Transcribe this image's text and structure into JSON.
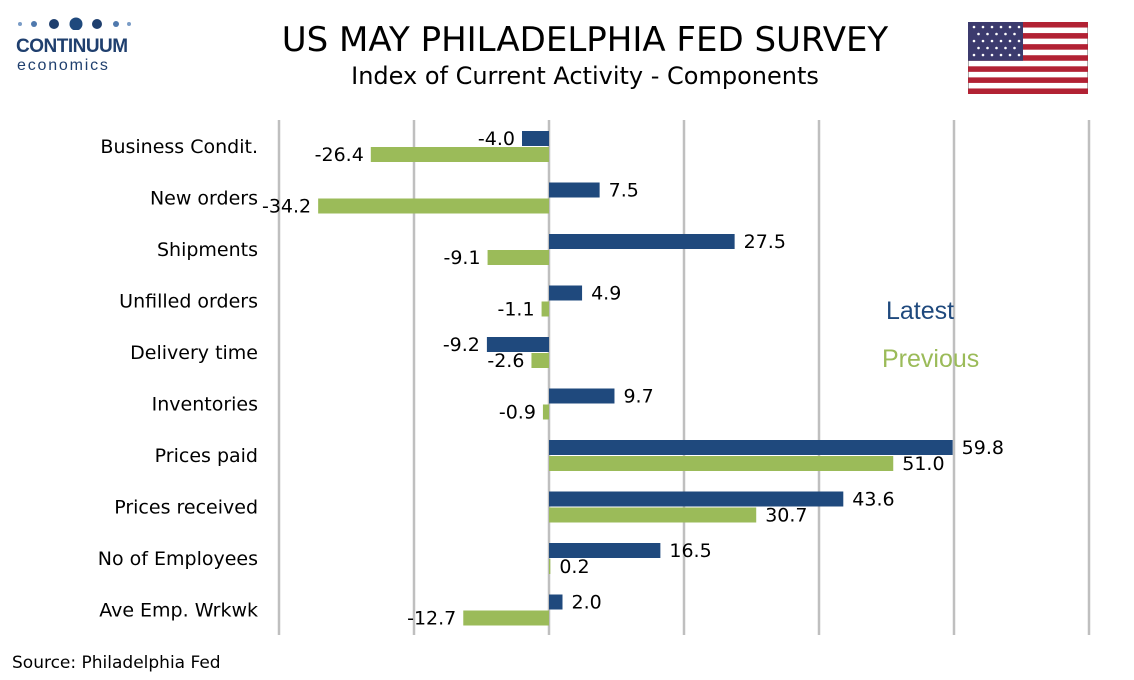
{
  "logo": {
    "line1": "CONTINUUM",
    "line2": "economics"
  },
  "flag_icon": "us-flag-icon",
  "source": "Source: Philadelphia Fed",
  "colors": {
    "latest": "#1f497d",
    "previous": "#9bbb59",
    "grid": "#bfbfbf"
  },
  "chart_data": {
    "type": "bar",
    "orientation": "horizontal",
    "title": "US MAY PHILADELPHIA FED SURVEY",
    "subtitle": "Index of Current Activity - Components",
    "categories": [
      "Business Condit.",
      "New orders",
      "Shipments",
      "Unfilled orders",
      "Delivery time",
      "Inventories",
      "Prices paid",
      "Prices received",
      "No of Employees",
      "Ave Emp. Wrkwk"
    ],
    "series": [
      {
        "name": "Latest",
        "values": [
          -4.0,
          7.5,
          27.5,
          4.9,
          -9.2,
          9.7,
          59.8,
          43.6,
          16.5,
          2.0
        ],
        "labels": [
          "-4.0",
          "7.5",
          "27.5",
          "4.9",
          "-9.2",
          "9.7",
          "59.8",
          "43.6",
          "16.5",
          "2.0"
        ]
      },
      {
        "name": "Previous",
        "values": [
          -26.4,
          -34.2,
          -9.1,
          -1.1,
          -2.6,
          -0.9,
          51.0,
          30.7,
          0.2,
          -12.7
        ],
        "labels": [
          "-26.4",
          "-34.2",
          "-9.1",
          "-1.1",
          "-2.6",
          "-0.9",
          "51.0",
          "30.7",
          "0.2",
          "-12.7"
        ]
      }
    ],
    "xlim": [
      -40,
      80
    ],
    "grid": true,
    "legend": "right, inside plot"
  }
}
